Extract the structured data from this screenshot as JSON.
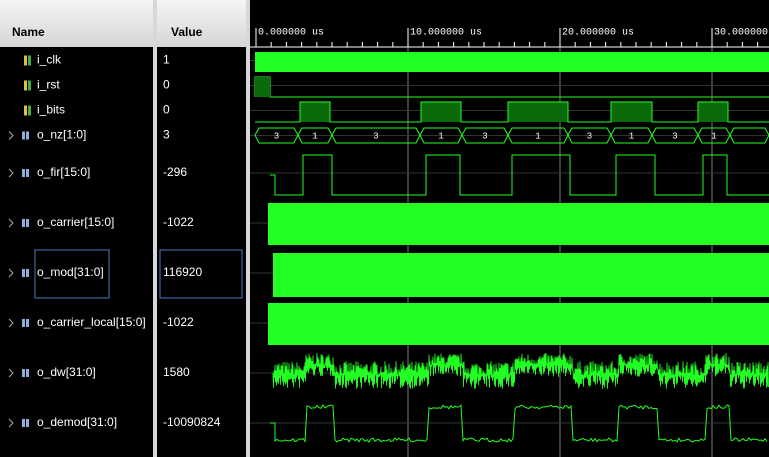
{
  "header": {
    "name": "Name",
    "value": "Value"
  },
  "ruler": [
    "0.000000 us",
    "10.000000 us",
    "20.000000 us",
    "30.000000"
  ],
  "signals": [
    {
      "name": "i_clk",
      "value": "1"
    },
    {
      "name": "i_rst",
      "value": "0"
    },
    {
      "name": "i_bits",
      "value": "0"
    },
    {
      "name": "o_nz[1:0]",
      "value": "3",
      "bus_labels": [
        "3",
        "1",
        "3",
        "1",
        "3",
        "1",
        "3",
        "1",
        "3",
        "1"
      ]
    },
    {
      "name": "o_fir[15:0]",
      "value": "-296"
    },
    {
      "name": "o_carrier[15:0]",
      "value": "-1022"
    },
    {
      "name": "o_mod[31:0]",
      "value": "116920"
    },
    {
      "name": "o_carrier_local[15:0]",
      "value": "-1022"
    },
    {
      "name": "o_dw[31:0]",
      "value": "1580"
    },
    {
      "name": "o_demod[31:0]",
      "value": "-10090824"
    }
  ]
}
